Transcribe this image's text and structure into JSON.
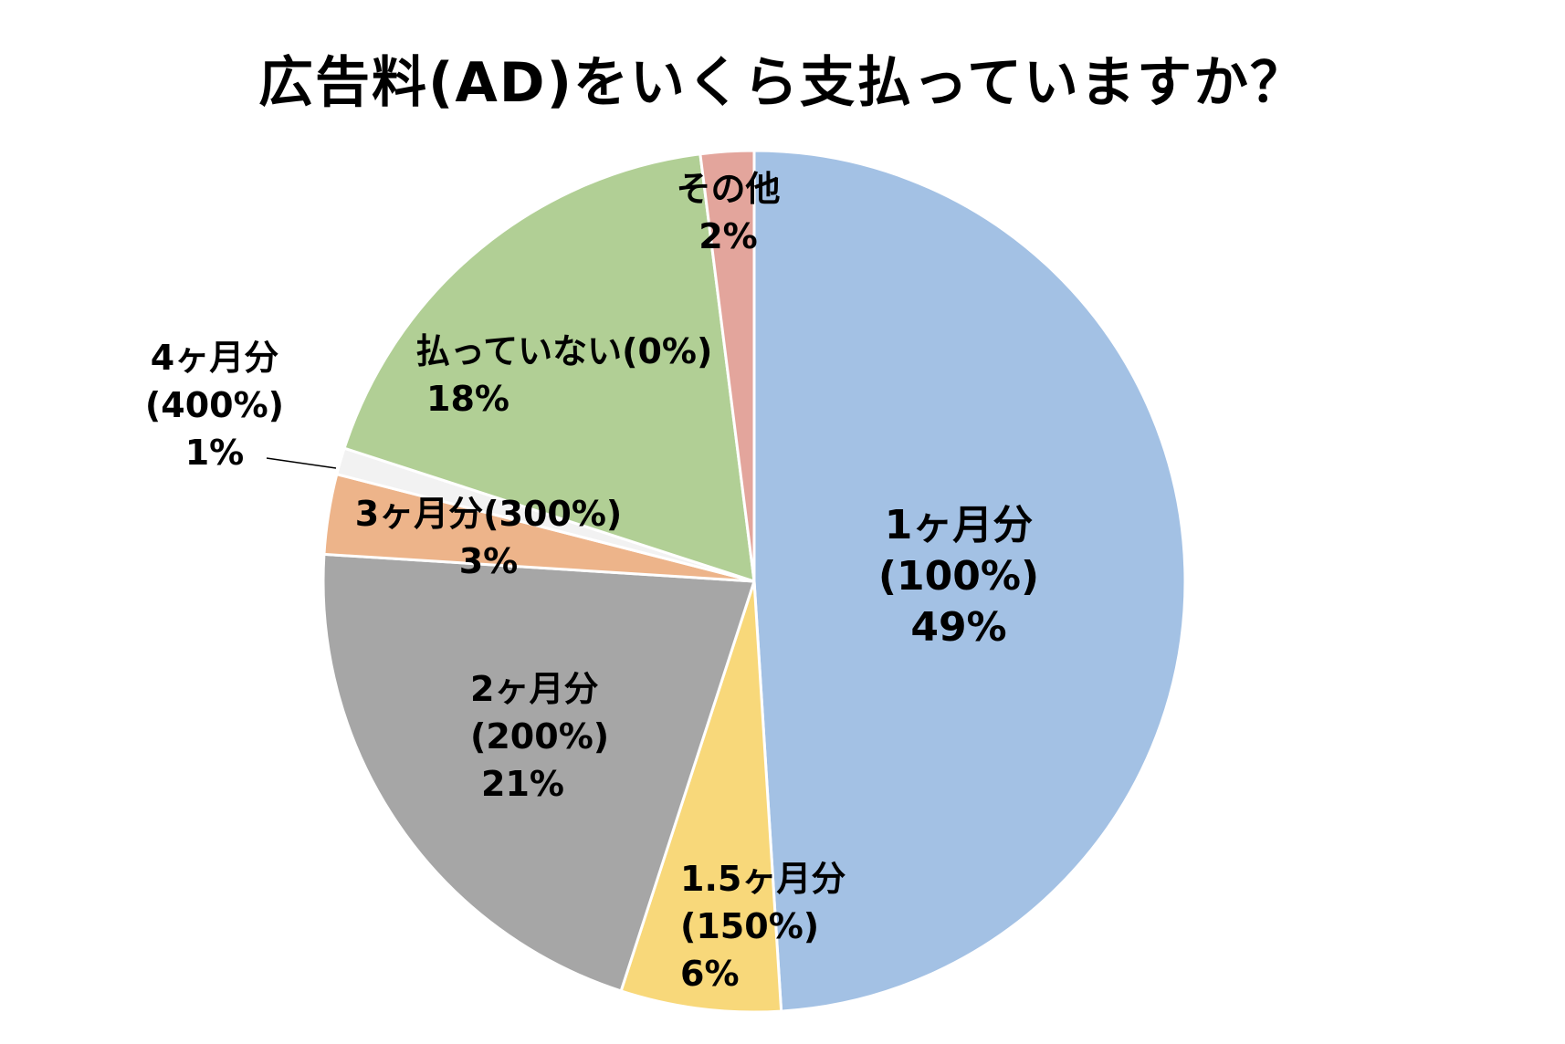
{
  "title": "広告料(AD)をいくら支払っていますか？",
  "chart_data": {
    "type": "pie",
    "title": "広告料(AD)をいくら支払っていますか？",
    "start_angle": 0,
    "direction": "clockwise",
    "categories": [
      "1ヶ月分(100%)",
      "1.5ヶ月分(150%)",
      "2ヶ月分(200%)",
      "3ヶ月分(300%)",
      "4ヶ月分(400%)",
      "払っていない(0%)",
      "その他"
    ],
    "values": [
      49,
      6,
      21,
      3,
      1,
      18,
      2
    ],
    "unit": "%",
    "colors": [
      "#A3C1E4",
      "#F8D87A",
      "#A6A6A6",
      "#EDB48A",
      "#F2F2F2",
      "#B1CF95",
      "#E3A59C"
    ],
    "legend": "none",
    "data_labels": [
      {
        "lines": [
          "1ヶ月分",
          "(100%)",
          "49%"
        ]
      },
      {
        "lines": [
          "1.5ヶ月分",
          "(150%)",
          "6%"
        ]
      },
      {
        "lines": [
          "2ヶ月分",
          "(200%)",
          "21%"
        ]
      },
      {
        "lines": [
          "3ヶ月分(300%)",
          "3%"
        ]
      },
      {
        "lines": [
          "4ヶ月分",
          "(400%)",
          "1%"
        ]
      },
      {
        "lines": [
          "払っていない(0%)",
          "18%"
        ]
      },
      {
        "lines": [
          "その他",
          "2%"
        ]
      }
    ]
  }
}
